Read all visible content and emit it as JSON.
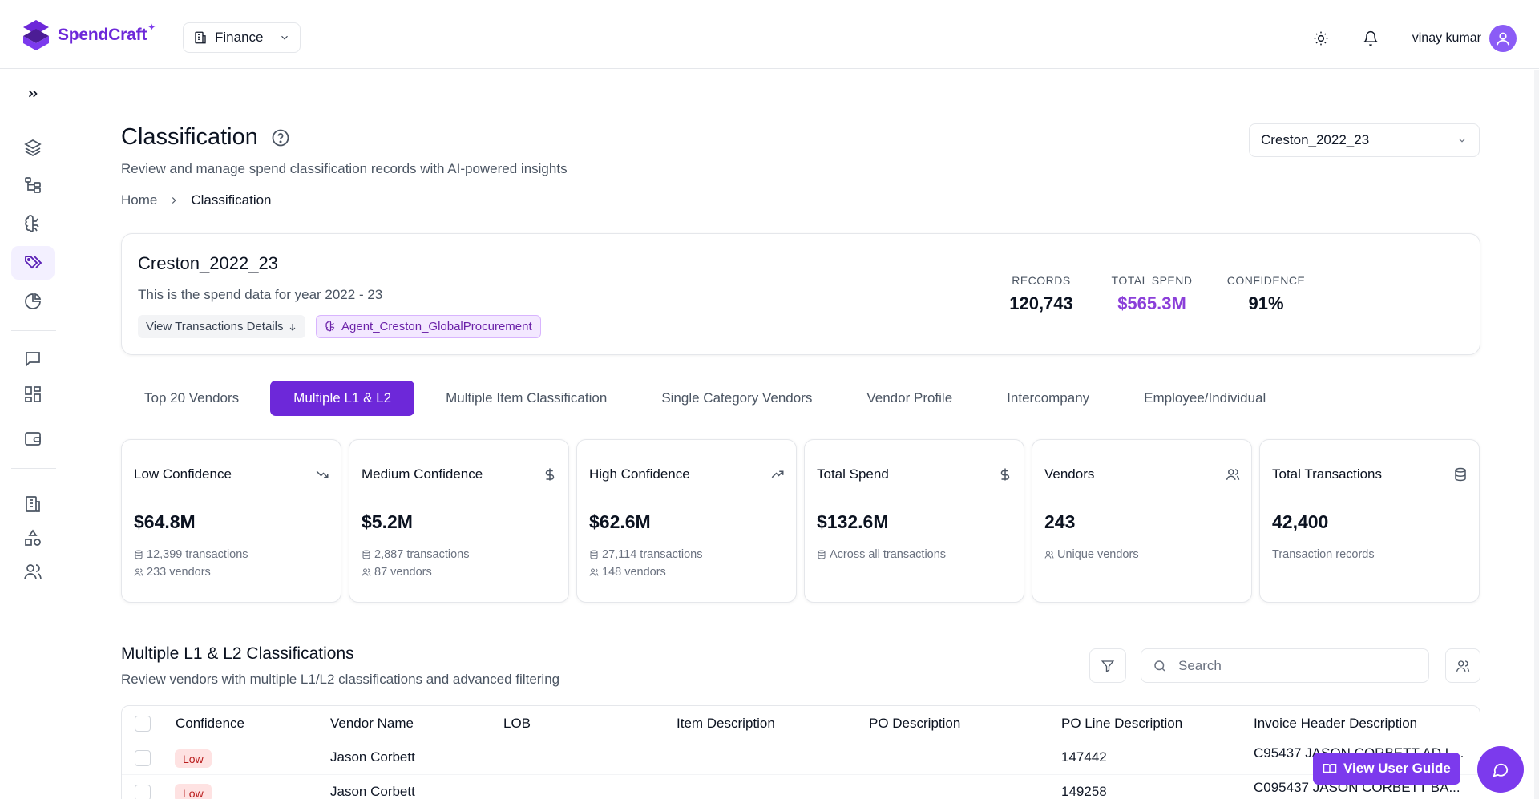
{
  "app": {
    "brand": "SpendCraft",
    "org_selector": "Finance",
    "user_name": "vinay kumar",
    "accent_color": "#6d28d9"
  },
  "sidebar": {
    "items": [
      {
        "icon": "chevrons-right-icon"
      },
      {
        "icon": "layers-icon"
      },
      {
        "icon": "hierarchy-icon"
      },
      {
        "icon": "brain-icon"
      },
      {
        "icon": "tags-icon",
        "active": true
      },
      {
        "icon": "pie-chart-icon"
      },
      {
        "icon": "message-icon"
      },
      {
        "icon": "dashboard-grid-icon"
      },
      {
        "icon": "wallet-icon"
      },
      {
        "icon": "building-icon"
      },
      {
        "icon": "shapes-icon"
      },
      {
        "icon": "users-icon"
      }
    ]
  },
  "page": {
    "title": "Classification",
    "subtitle": "Review and manage spend classification records with AI-powered insights",
    "breadcrumb": {
      "home": "Home",
      "current": "Classification"
    },
    "dataset_selector": "Creston_2022_23"
  },
  "dataset_card": {
    "name": "Creston_2022_23",
    "description": "This is the spend data for year 2022 - 23",
    "view_details": "View Transactions Details",
    "agent": "Agent_Creston_GlobalProcurement",
    "metrics": [
      {
        "label": "RECORDS",
        "value": "120,743"
      },
      {
        "label": "TOTAL SPEND",
        "value": "$565.3M"
      },
      {
        "label": "CONFIDENCE",
        "value": "91%"
      }
    ]
  },
  "tabs": [
    {
      "label": "Top 20 Vendors"
    },
    {
      "label": "Multiple L1 & L2",
      "active": true
    },
    {
      "label": "Multiple Item Classification"
    },
    {
      "label": "Single Category Vendors"
    },
    {
      "label": "Vendor Profile"
    },
    {
      "label": "Intercompany"
    },
    {
      "label": "Employee/Individual"
    }
  ],
  "stats": [
    {
      "title": "Low Confidence",
      "icon": "trending-down-icon",
      "value": "$64.8M",
      "sub1": "12,399 transactions",
      "sub2": "233 vendors"
    },
    {
      "title": "Medium Confidence",
      "icon": "dollar-icon",
      "value": "$5.2M",
      "sub1": "2,887 transactions",
      "sub2": "87 vendors"
    },
    {
      "title": "High Confidence",
      "icon": "trending-up-icon",
      "value": "$62.6M",
      "sub1": "27,114 transactions",
      "sub2": "148 vendors"
    },
    {
      "title": "Total Spend",
      "icon": "dollar-icon",
      "value": "$132.6M",
      "sub1": "Across all transactions"
    },
    {
      "title": "Vendors",
      "icon": "users-icon",
      "value": "243",
      "sub1": "Unique vendors"
    },
    {
      "title": "Total Transactions",
      "icon": "database-icon",
      "value": "42,400",
      "sub1": "Transaction records"
    }
  ],
  "section": {
    "title": "Multiple L1 & L2 Classifications",
    "subtitle": "Review vendors with multiple L1/L2 classifications and advanced filtering",
    "search_placeholder": "Search"
  },
  "table": {
    "columns": [
      "Confidence",
      "Vendor Name",
      "LOB",
      "Item Description",
      "PO Description",
      "PO Line Description",
      "Invoice Header Description"
    ],
    "rows": [
      {
        "confidence": "Low",
        "vendor": "Jason Corbett",
        "lob": "",
        "item": "",
        "po": "",
        "po_line": "147442",
        "invoice": "C95437 JASON CORBETT AD L..."
      },
      {
        "confidence": "Low",
        "vendor": "Jason Corbett",
        "lob": "",
        "item": "",
        "po": "",
        "po_line": "149258",
        "invoice": "C095437 JASON CORBETT BA..."
      }
    ]
  },
  "floating": {
    "guide_label": "View User Guide"
  }
}
